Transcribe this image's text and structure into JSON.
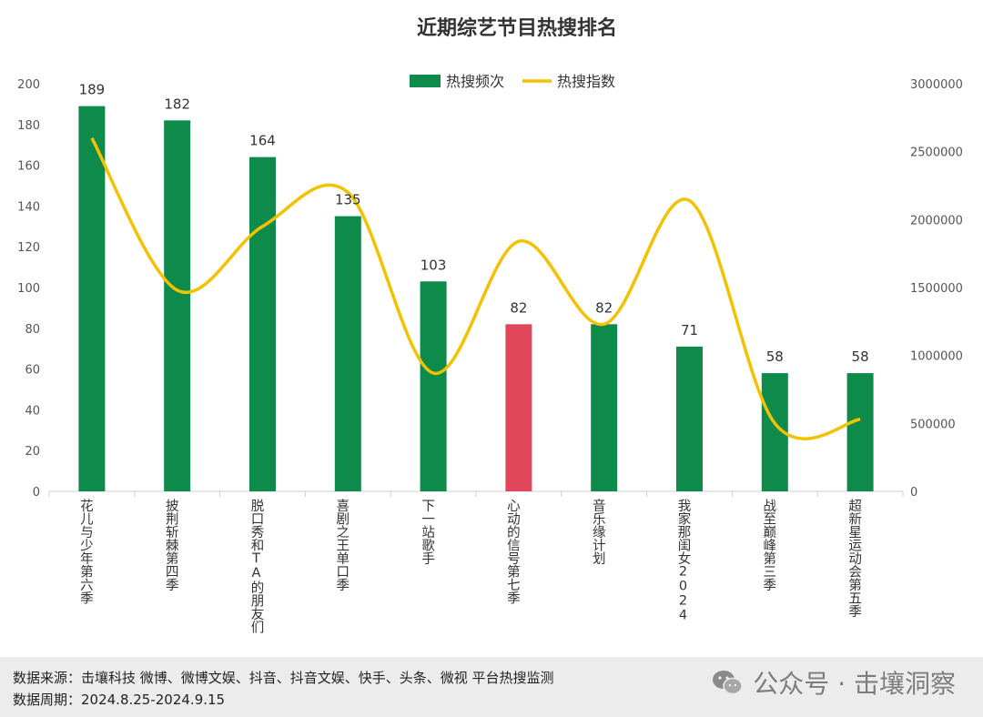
{
  "chart_data": {
    "type": "bar",
    "title": "近期综艺节目热搜排名",
    "categories": [
      "花儿与少年第六季",
      "披荆斩棘第四季",
      "脱口秀和TA的朋友们",
      "喜剧之王单口季",
      "下一站歌手",
      "心动的信号第七季",
      "音乐缘计划",
      "我家那闺女2024",
      "战至巅峰第三季",
      "超新星运动会第五季"
    ],
    "series": [
      {
        "name": "热搜频次",
        "type": "bar",
        "axis": "left",
        "color": "#0e8a4a",
        "values": [
          189,
          182,
          164,
          135,
          103,
          82,
          82,
          71,
          58,
          58
        ]
      },
      {
        "name": "热搜指数",
        "type": "line",
        "axis": "right",
        "color": "#f2c200",
        "values": [
          2600000,
          1480000,
          1950000,
          2200000,
          870000,
          1840000,
          1230000,
          2140000,
          500000,
          530000
        ]
      }
    ],
    "highlight": {
      "index": 5,
      "color": "#e0475b"
    },
    "data_labels": [
      "189",
      "182",
      "164",
      "135",
      "103",
      "82",
      "82",
      "71",
      "58",
      "58"
    ],
    "left_axis": {
      "ylim": [
        0,
        200
      ],
      "ticks": [
        "0",
        "20",
        "40",
        "60",
        "80",
        "100",
        "120",
        "140",
        "160",
        "180",
        "200"
      ]
    },
    "right_axis": {
      "ylim": [
        0,
        3000000
      ],
      "ticks": [
        "0",
        "500000",
        "1000000",
        "1500000",
        "2000000",
        "2500000",
        "3000000"
      ]
    },
    "legend_position": "top-center",
    "grid": false
  },
  "footer": {
    "source": "数据来源：击壤科技 微博、微博文娱、抖音、抖音文娱、快手、头条、微视 平台热搜监测",
    "period": "数据周期：2024.8.25-2024.9.15",
    "watermark": "公众号 · 击壤洞察"
  }
}
